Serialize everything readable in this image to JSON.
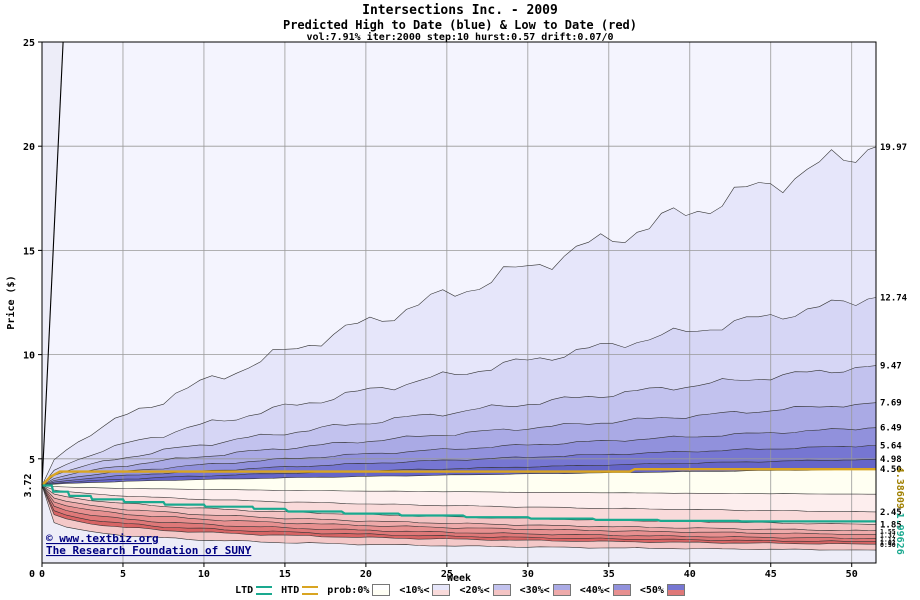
{
  "chart_data": {
    "type": "fan",
    "title": "Intersections Inc. - 2009",
    "subtitle": "Predicted High to Date (blue) &  Low to Date (red)",
    "params": "vol:7.91% iter:2000 step:10 hurst:0.57 drift:0.07/0",
    "xlabel": "Week",
    "ylabel": "Price ($)",
    "xlim": [
      0,
      51.5
    ],
    "ylim": [
      0,
      25
    ],
    "xticks": [
      0,
      5,
      10,
      15,
      20,
      25,
      30,
      35,
      40,
      45,
      50
    ],
    "yticks": [
      5,
      10,
      15,
      20,
      25
    ],
    "grid": true,
    "start": {
      "week": 0,
      "price": 3.72,
      "label": "3.72"
    },
    "bg_color": "#ededf8",
    "top_region_color": "#f4f4fe",
    "gap_color": "#fffff2",
    "high_fan": {
      "extreme": {
        "exit_week": 1.3,
        "exit_value": 25
      },
      "boundaries": [
        {
          "end": 19.97,
          "p": 0.42,
          "label": "19.97"
        },
        {
          "end": 12.74,
          "p": 0.46,
          "label": "12.74"
        },
        {
          "end": 9.47,
          "p": 0.48,
          "label": "9.47"
        },
        {
          "end": 7.69,
          "p": 0.5,
          "label": "7.69"
        },
        {
          "end": 6.49,
          "p": 0.52,
          "label": "6.49"
        },
        {
          "end": 5.64,
          "p": 0.54,
          "label": "5.64"
        },
        {
          "end": 4.98,
          "p": 0.56,
          "label": "4.98"
        },
        {
          "end": 4.5,
          "p": 0.58,
          "label": "4.50"
        }
      ],
      "band_colors": [
        "#e6e6fa",
        "#d6d6f5",
        "#c2c2ee",
        "#aaaae5",
        "#9191dc",
        "#7676d2",
        "#6565c8"
      ]
    },
    "low_fan": {
      "boundaries": [
        {
          "end": 3.3,
          "p": 0.5,
          "label": ""
        },
        {
          "end": 2.45,
          "p": 0.46,
          "label": "2.45"
        },
        {
          "end": 1.85,
          "p": 0.42,
          "label": "1.85"
        },
        {
          "end": 1.55,
          "p": 0.38,
          "label": "1.55"
        },
        {
          "end": 1.37,
          "p": 0.34,
          "label": "1.37"
        },
        {
          "end": 1.17,
          "p": 0.31,
          "label": "1.17"
        },
        {
          "end": 1.02,
          "p": 0.28,
          "label": "1.02"
        },
        {
          "end": 0.9,
          "p": 0.26,
          "label": "0.90"
        },
        {
          "end": 0.62,
          "p": 0.24,
          "label": ""
        }
      ],
      "band_colors": [
        "#fdeeee",
        "#f9dada",
        "#f4c4c4",
        "#eeaaaa",
        "#e79090",
        "#df7878",
        "#d86464",
        "#f4c8c8"
      ]
    },
    "htd": {
      "color": "#d9a521",
      "pre": 4.386,
      "step_week": 36.3,
      "post": 4.5,
      "side_label": "4.38609",
      "side_color": "#a08000"
    },
    "ltd": {
      "color": "#1aa98f",
      "final": 1.99626,
      "side_label": "1.99626",
      "side_color": "#1aa98f",
      "points": [
        [
          0,
          3.72
        ],
        [
          0.6,
          3.72
        ],
        [
          0.7,
          3.42
        ],
        [
          1.6,
          3.42
        ],
        [
          1.7,
          3.22
        ],
        [
          3,
          3.22
        ],
        [
          3.1,
          3.05
        ],
        [
          5,
          3.05
        ],
        [
          5.1,
          2.92
        ],
        [
          7.5,
          2.92
        ],
        [
          7.6,
          2.8
        ],
        [
          10,
          2.8
        ],
        [
          10.1,
          2.7
        ],
        [
          13,
          2.7
        ],
        [
          13.1,
          2.6
        ],
        [
          15,
          2.6
        ],
        [
          15.2,
          2.47
        ],
        [
          18.5,
          2.47
        ],
        [
          18.7,
          2.37
        ],
        [
          22,
          2.37
        ],
        [
          22.2,
          2.28
        ],
        [
          26,
          2.28
        ],
        [
          26.2,
          2.2
        ],
        [
          30,
          2.2
        ],
        [
          30.2,
          2.13
        ],
        [
          34,
          2.13
        ],
        [
          34.2,
          2.07
        ],
        [
          38,
          2.07
        ],
        [
          38.2,
          2.02
        ],
        [
          43,
          2.02
        ],
        [
          43.2,
          1.99626
        ],
        [
          51.5,
          1.99626
        ]
      ]
    },
    "watermark": {
      "line1": "© www.textbiz.org",
      "line2": "The Research Foundation of SUNY",
      "color": "#000080"
    },
    "legend": [
      {
        "label": "LTD",
        "type": "line",
        "color": "#1aa98f"
      },
      {
        "label": "HTD",
        "type": "line",
        "color": "#d9a521"
      },
      {
        "label": "prob:0%",
        "type": "box",
        "top": "#ffffff",
        "bottom": "#fffff4"
      },
      {
        "label": "<10%<",
        "type": "box",
        "top": "#e6e6fa",
        "bottom": "#f9dada"
      },
      {
        "label": "<20%<",
        "type": "box",
        "top": "#c2c2ee",
        "bottom": "#f4c4c4"
      },
      {
        "label": "<30%<",
        "type": "box",
        "top": "#aaaae5",
        "bottom": "#eeaaaa"
      },
      {
        "label": "<40%<",
        "type": "box",
        "top": "#9191dc",
        "bottom": "#e79090"
      },
      {
        "label": "<50%",
        "type": "box",
        "top": "#7676d2",
        "bottom": "#df7878"
      }
    ]
  }
}
